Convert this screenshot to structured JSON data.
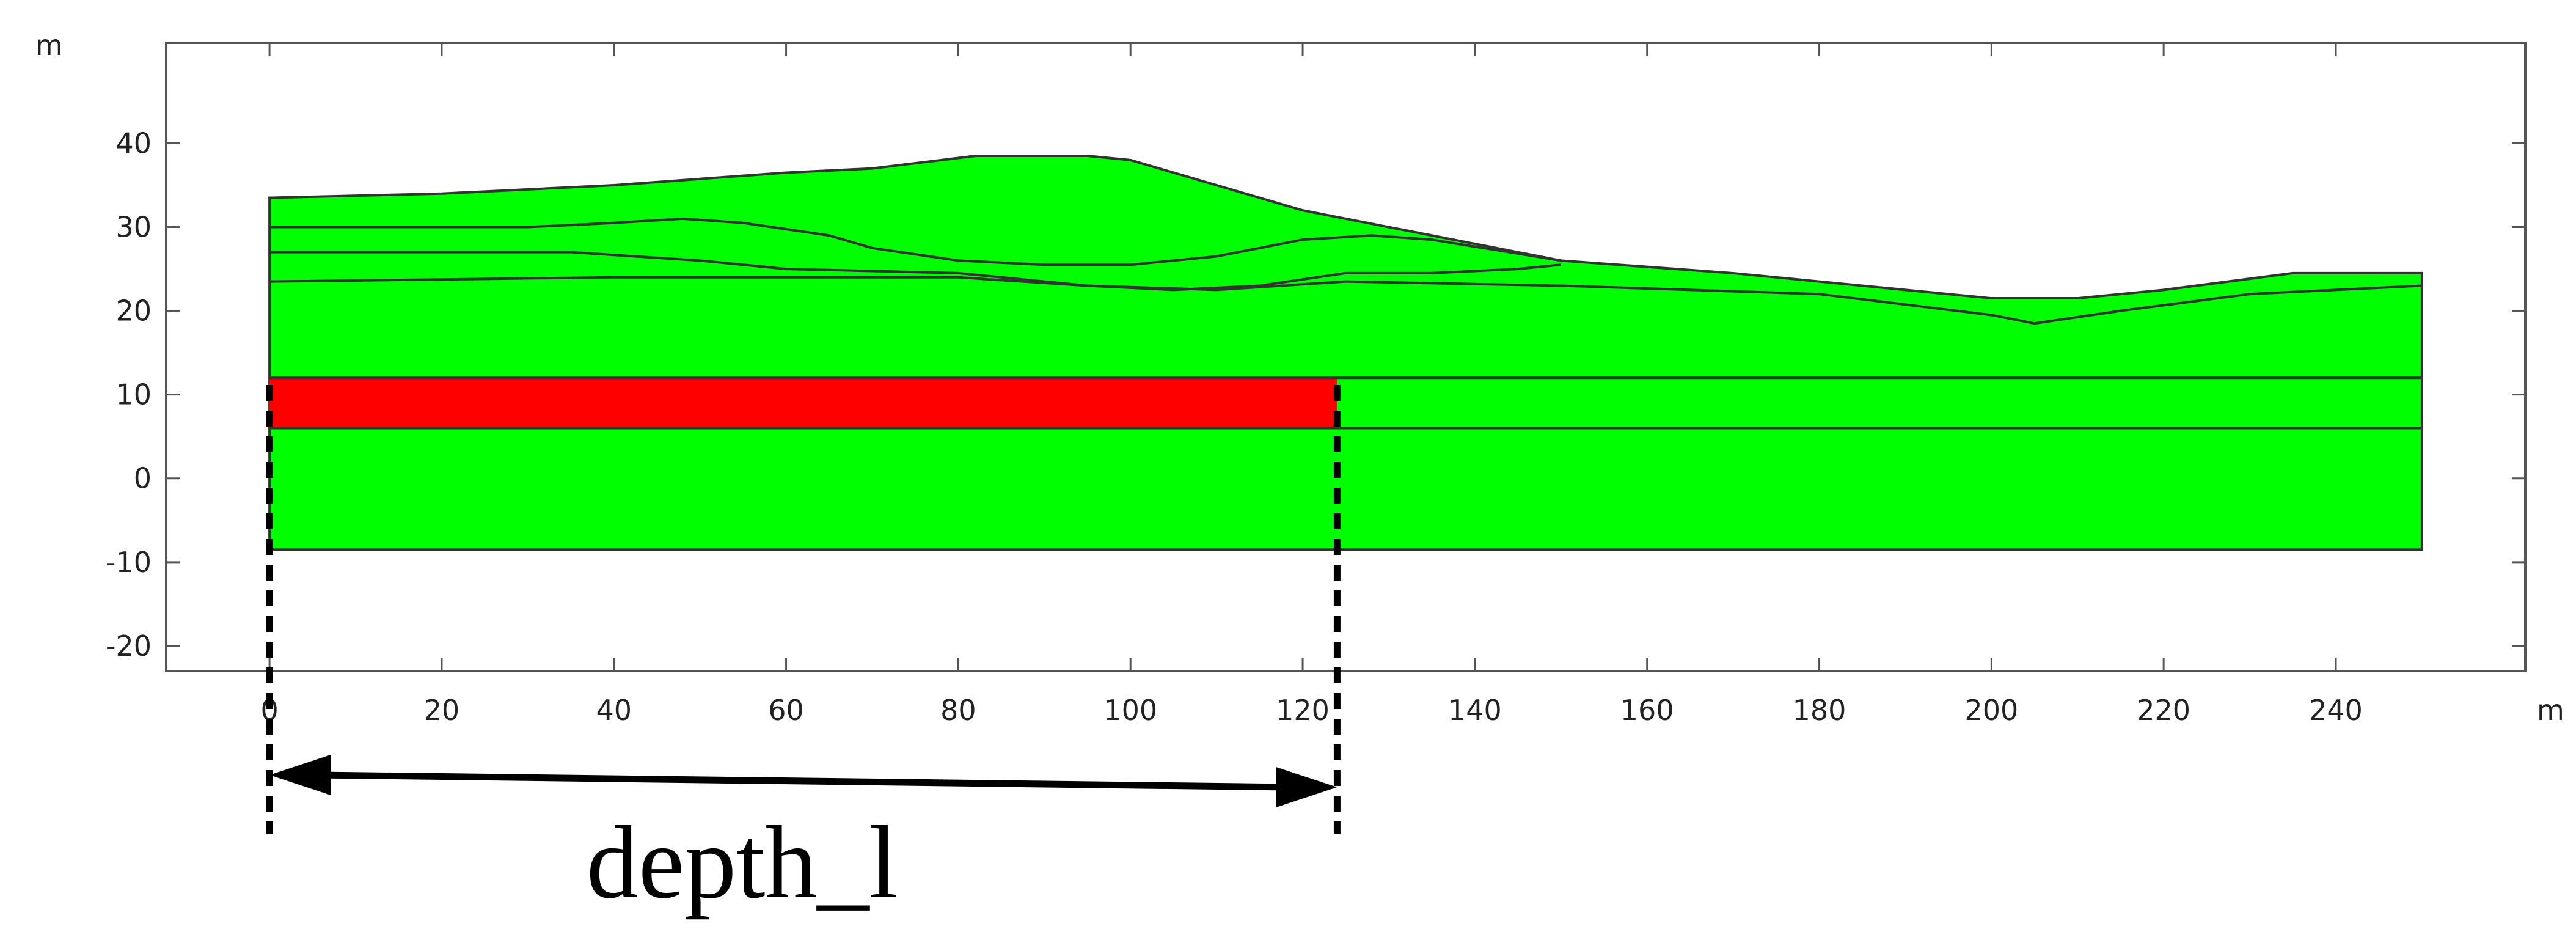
{
  "figure": {
    "x_unit": "m",
    "y_unit": "m",
    "x_range": [
      -12,
      262
    ],
    "y_range": [
      -23,
      52
    ],
    "x_ticks": [
      0,
      20,
      40,
      60,
      80,
      100,
      120,
      140,
      160,
      180,
      200,
      220,
      240
    ],
    "y_ticks": [
      40,
      30,
      20,
      10,
      0,
      -10,
      -20
    ],
    "x_tick_labels": [
      "0",
      "20",
      "40",
      "60",
      "80",
      "100",
      "120",
      "140",
      "160",
      "180",
      "200",
      "220",
      "240"
    ],
    "y_tick_labels": [
      "40",
      "30",
      "20",
      "10",
      "0",
      "-10",
      "-20"
    ],
    "colors": {
      "soil": "#00ff00",
      "highlight": "#ff0000",
      "outline": "#333333",
      "dimension": "#000000"
    },
    "model": {
      "x_min": 0,
      "x_max": 250,
      "bottom": -8.5,
      "surface_profile": [
        [
          0,
          33.5
        ],
        [
          20,
          34
        ],
        [
          40,
          35
        ],
        [
          60,
          36.5
        ],
        [
          70,
          37
        ],
        [
          82,
          38.5
        ],
        [
          95,
          38.5
        ],
        [
          100,
          38
        ],
        [
          110,
          35
        ],
        [
          120,
          32
        ],
        [
          135,
          29
        ],
        [
          150,
          26
        ],
        [
          170,
          24.5
        ],
        [
          200,
          21.5
        ],
        [
          210,
          21.5
        ],
        [
          220,
          22.5
        ],
        [
          235,
          24.5
        ],
        [
          250,
          24.5
        ]
      ],
      "interfaces": [
        [
          [
            0,
            30
          ],
          [
            30,
            30
          ],
          [
            40,
            30.5
          ],
          [
            48,
            31
          ],
          [
            55,
            30.5
          ],
          [
            65,
            29
          ],
          [
            70,
            27.5
          ],
          [
            80,
            26
          ],
          [
            90,
            25.5
          ],
          [
            100,
            25.5
          ],
          [
            110,
            26.5
          ],
          [
            120,
            28.5
          ],
          [
            128,
            29
          ],
          [
            135,
            28.5
          ],
          [
            150,
            26
          ]
        ],
        [
          [
            0,
            27
          ],
          [
            35,
            27
          ],
          [
            50,
            26
          ],
          [
            60,
            25
          ],
          [
            80,
            24.5
          ],
          [
            95,
            23
          ],
          [
            105,
            22.5
          ],
          [
            115,
            23
          ],
          [
            125,
            24.5
          ],
          [
            135,
            24.5
          ],
          [
            145,
            25
          ],
          [
            150,
            25.5
          ]
        ],
        [
          [
            0,
            23.5
          ],
          [
            40,
            24
          ],
          [
            80,
            24
          ],
          [
            95,
            23
          ],
          [
            110,
            22.5
          ],
          [
            125,
            23.5
          ],
          [
            150,
            23
          ],
          [
            180,
            22
          ],
          [
            200,
            19.5
          ],
          [
            205,
            18.5
          ],
          [
            215,
            20
          ],
          [
            230,
            22
          ],
          [
            250,
            23
          ]
        ],
        [
          [
            0,
            12
          ],
          [
            250,
            12
          ]
        ],
        [
          [
            0,
            6
          ],
          [
            250,
            6
          ]
        ]
      ],
      "red_layer": {
        "x_start": 0,
        "x_end": 124,
        "top": 12,
        "bottom": 6
      }
    },
    "dimension": {
      "label": "depth_l",
      "x_start": 0,
      "x_end": 124
    }
  }
}
